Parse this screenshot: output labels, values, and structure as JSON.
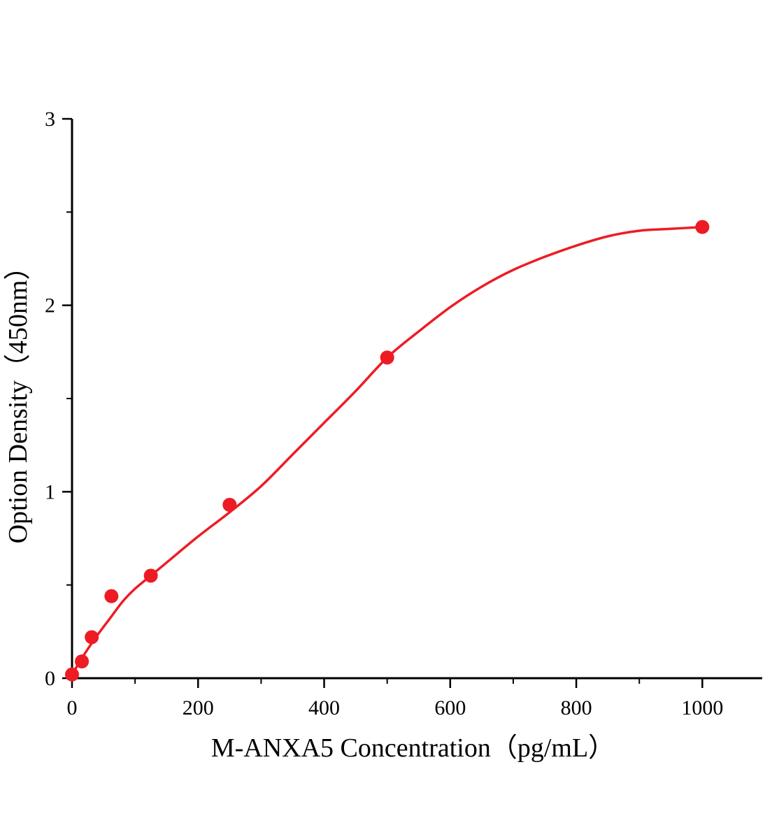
{
  "chart_data": {
    "type": "scatter",
    "title": "",
    "xlabel": "M-ANXA5 Concentration（pg/mL）",
    "ylabel": "Option Density（450nm）",
    "xlim": [
      0,
      1095
    ],
    "ylim": [
      0,
      3
    ],
    "x_major_ticks": [
      0,
      200,
      400,
      600,
      800,
      1000
    ],
    "x_minor_step": 100,
    "y_major_ticks": [
      0,
      1,
      2,
      3
    ],
    "y_minor_step": 0.5,
    "grid": false,
    "legend_position": "none",
    "axis_color": "#000000",
    "accent_color": "#ed1c24",
    "series": [
      {
        "name": "standard-points",
        "type": "scatter",
        "color": "#ed1c24",
        "marker": "circle",
        "marker_radius": 10,
        "x": [
          0,
          15.6,
          31.25,
          62.5,
          125,
          250,
          500,
          1000
        ],
        "y": [
          0.02,
          0.09,
          0.22,
          0.44,
          0.55,
          0.93,
          1.72,
          2.42
        ]
      },
      {
        "name": "fit-curve",
        "type": "line",
        "color": "#ed1c24",
        "stroke_width": 3.5,
        "x": [
          0,
          20,
          40,
          60,
          80,
          100,
          125,
          150,
          200,
          250,
          300,
          350,
          400,
          450,
          500,
          550,
          600,
          650,
          700,
          750,
          800,
          850,
          900,
          950,
          1000
        ],
        "y": [
          0.02,
          0.13,
          0.23,
          0.32,
          0.41,
          0.48,
          0.55,
          0.62,
          0.76,
          0.89,
          1.03,
          1.2,
          1.37,
          1.54,
          1.72,
          1.86,
          1.99,
          2.1,
          2.19,
          2.26,
          2.32,
          2.37,
          2.4,
          2.41,
          2.42
        ]
      }
    ]
  }
}
